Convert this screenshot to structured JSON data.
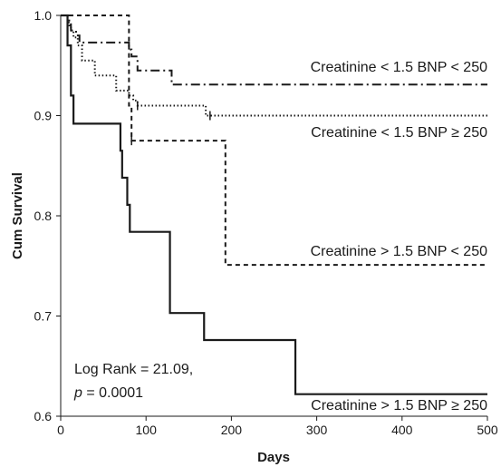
{
  "chart_data": {
    "type": "line",
    "subtype": "kaplan-meier step plot",
    "xlabel": "Days",
    "ylabel": "Cum Survival",
    "xlim": [
      0,
      500
    ],
    "ylim": [
      0.6,
      1.0
    ],
    "x_ticks": [
      0,
      100,
      200,
      300,
      400,
      500
    ],
    "y_ticks": [
      0.6,
      0.7,
      0.8,
      0.9,
      1.0
    ],
    "x_tick_labels": [
      "0",
      "100",
      "200",
      "300",
      "400",
      "500"
    ],
    "y_tick_labels": [
      "0.6",
      "0.7",
      "0.8",
      "0.9",
      "1.0"
    ],
    "grid": false,
    "series": [
      {
        "name": "Creatinine < 1.5 BNP < 250",
        "line_style": "dash-dot",
        "x": [
          0,
          10,
          12,
          18,
          22,
          80,
          83,
          90,
          130,
          168,
          500
        ],
        "y": [
          1.0,
          0.99,
          0.985,
          0.98,
          0.973,
          0.966,
          0.959,
          0.945,
          0.931,
          0.931,
          0.931
        ]
      },
      {
        "name": "Creatinine < 1.5 BNP ≥ 250",
        "line_style": "dotted",
        "x": [
          0,
          8,
          12,
          15,
          20,
          25,
          40,
          65,
          80,
          85,
          90,
          170,
          500
        ],
        "y": [
          1.0,
          0.993,
          0.985,
          0.978,
          0.97,
          0.955,
          0.94,
          0.925,
          0.92,
          0.915,
          0.91,
          0.9,
          0.9
        ],
        "censor_ticks": [
          90,
          175
        ]
      },
      {
        "name": "Creatinine > 1.5 BNP < 250",
        "line_style": "dashed",
        "x": [
          0,
          80,
          83,
          193,
          500
        ],
        "y": [
          1.0,
          0.91,
          0.875,
          0.751,
          0.751
        ],
        "censor_ticks": [
          83
        ]
      },
      {
        "name": "Creatinine > 1.5 BNP ≥ 250",
        "line_style": "solid",
        "x": [
          0,
          8,
          12,
          15,
          70,
          72,
          78,
          81,
          128,
          168,
          275,
          500
        ],
        "y": [
          1.0,
          0.97,
          0.92,
          0.892,
          0.865,
          0.838,
          0.811,
          0.784,
          0.703,
          0.676,
          0.622,
          0.622
        ]
      }
    ],
    "annotation_lines": [
      "Log Rank = 21.09,",
      "p = 0.0001"
    ],
    "annotation_parts": {
      "p": "p",
      "p_rest": " = 0.0001"
    }
  }
}
